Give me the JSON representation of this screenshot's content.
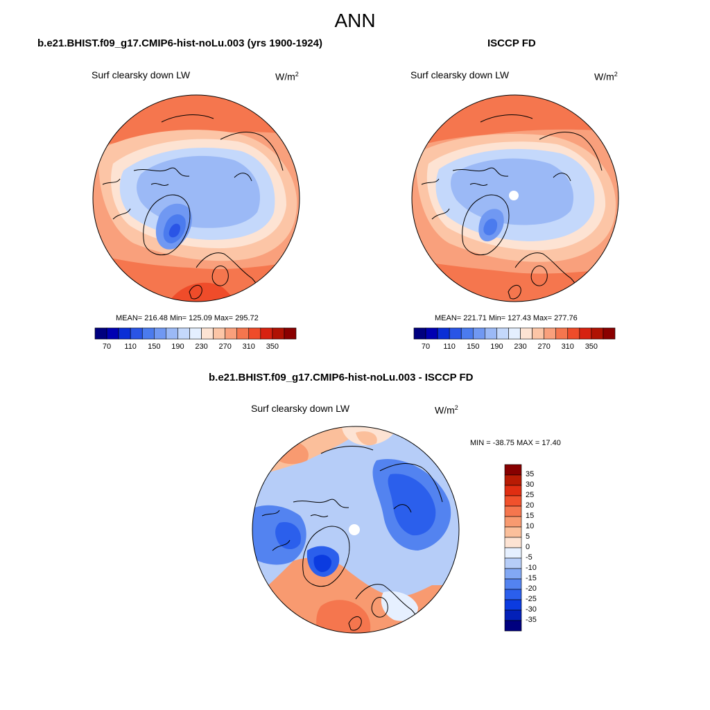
{
  "title": "ANN",
  "panels": [
    {
      "title": "b.e21.BHIST.f09_g17.CMIP6-hist-noLu.003 (yrs 1900-1924)",
      "variable": "Surf clearsky down LW",
      "units_base": "W/m",
      "units_exp": "2",
      "stats": "MEAN= 216.48  Min= 125.09  Max= 295.72"
    },
    {
      "title": "ISCCP FD",
      "variable": "Surf clearsky down LW",
      "units_base": "W/m",
      "units_exp": "2",
      "stats": "MEAN= 221.71  Min= 127.43  Max= 277.76"
    },
    {
      "title": "b.e21.BHIST.f09_g17.CMIP6-hist-noLu.003 - ISCCP FD",
      "variable": "Surf clearsky down LW",
      "units_base": "W/m",
      "units_exp": "2",
      "stats": "MIN = -38.75 MAX =  17.40"
    }
  ],
  "colorbar_abs": {
    "colors": [
      "#00007f",
      "#0000b2",
      "#0a2fd6",
      "#2a55e6",
      "#4b7bee",
      "#7098f2",
      "#9bb9f6",
      "#c4d8fb",
      "#e4efff",
      "#fde3d3",
      "#fcc5a6",
      "#f9a07c",
      "#f5764e",
      "#ef4c2a",
      "#d72210",
      "#b01203",
      "#8a0000"
    ],
    "tick_labels": [
      "70",
      "110",
      "150",
      "190",
      "230",
      "270",
      "310",
      "350"
    ]
  },
  "colorbar_diff": {
    "colors": [
      "#00007f",
      "#0320b8",
      "#0b3be0",
      "#2b5fec",
      "#5383f0",
      "#82a8f4",
      "#b6cdf8",
      "#e6f0ff",
      "#fde3d3",
      "#fbbf9b",
      "#f89a70",
      "#f5764e",
      "#f1512c",
      "#e02e12",
      "#b81b04",
      "#870000"
    ],
    "tick_labels": [
      "35",
      "30",
      "25",
      "20",
      "15",
      "10",
      "5",
      "0",
      "-5",
      "-10",
      "-15",
      "-20",
      "-25",
      "-30",
      "-35"
    ]
  }
}
